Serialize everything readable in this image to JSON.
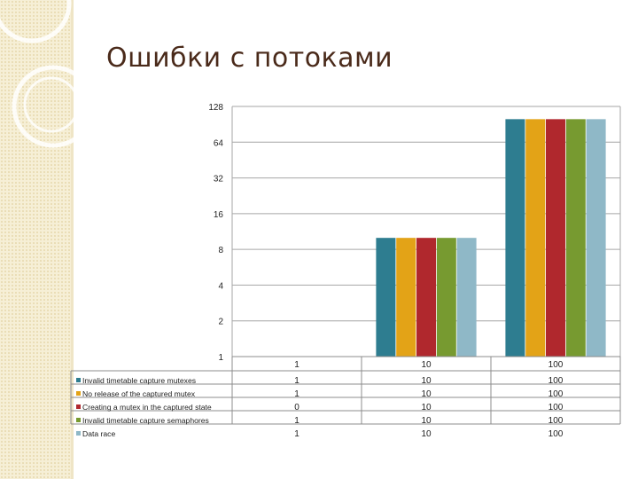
{
  "slide": {
    "title": "Ошибки с потоками"
  },
  "colors": {
    "background_band": "#f6efd6",
    "title": "#4a2a1a"
  },
  "chart_data": {
    "type": "bar",
    "scale": "log2",
    "ylim": [
      1,
      128
    ],
    "y_ticks": [
      "128",
      "64",
      "32",
      "16",
      "8",
      "4",
      "2",
      "1"
    ],
    "y_tick_values": [
      128,
      64,
      32,
      16,
      8,
      4,
      2,
      1
    ],
    "categories": [
      "1",
      "10",
      "100"
    ],
    "legend_position": "left, as data table rows",
    "series": [
      {
        "name": "Invalid timetable capture mutexes",
        "color": "#2e7d90",
        "values": [
          1,
          10,
          100
        ],
        "labels": [
          "1",
          "10",
          "100"
        ]
      },
      {
        "name": "No release of the captured mutex",
        "color": "#e3a317",
        "values": [
          1,
          10,
          100
        ],
        "labels": [
          "1",
          "10",
          "100"
        ]
      },
      {
        "name": "Creating a mutex in the captured state",
        "color": "#b0282d",
        "values": [
          0,
          10,
          100
        ],
        "labels": [
          "0",
          "10",
          "100"
        ]
      },
      {
        "name": "Invalid timetable capture semaphores",
        "color": "#779a30",
        "values": [
          1,
          10,
          100
        ],
        "labels": [
          "1",
          "10",
          "100"
        ]
      },
      {
        "name": "Data race",
        "color": "#8fb8c7",
        "values": [
          1,
          10,
          100
        ],
        "labels": [
          "1",
          "10",
          "100"
        ]
      }
    ]
  }
}
